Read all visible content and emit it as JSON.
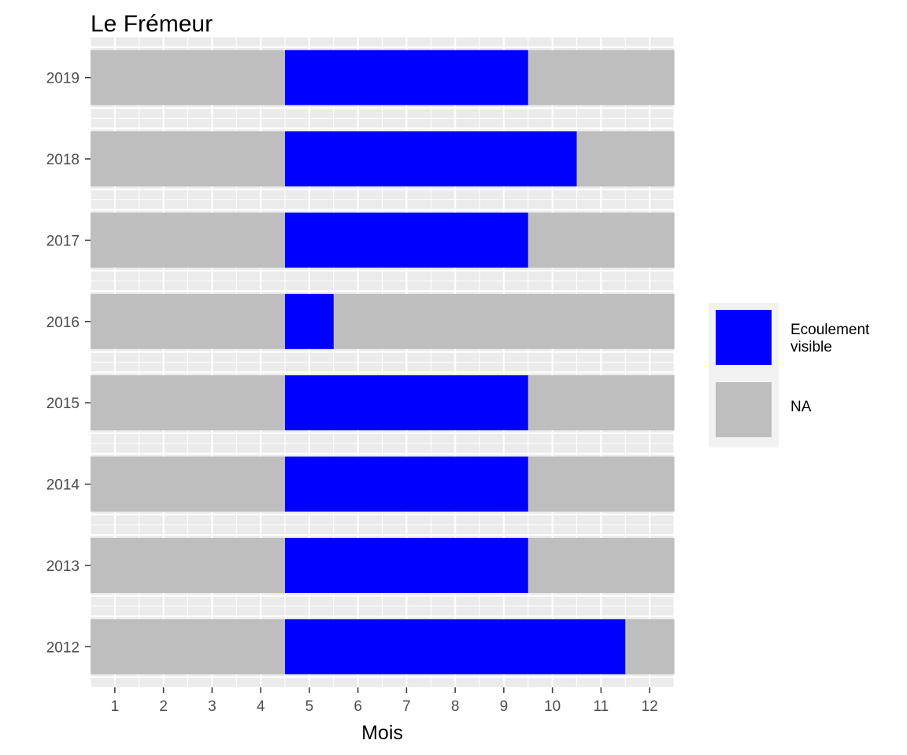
{
  "chart_data": {
    "type": "heatmap",
    "title": "Le Frémeur",
    "xlabel": "Mois",
    "ylabel": "",
    "x_ticks": [
      1,
      2,
      3,
      4,
      5,
      6,
      7,
      8,
      9,
      10,
      11,
      12
    ],
    "y_categories": [
      "2012",
      "2013",
      "2014",
      "2015",
      "2016",
      "2017",
      "2018",
      "2019"
    ],
    "series": [
      {
        "name": "Ecoulement visible",
        "color": "#0000ff"
      },
      {
        "name": "NA",
        "color": "#bebebe"
      }
    ],
    "rows": [
      {
        "year": "2012",
        "flow_months": [
          5,
          6,
          7,
          8,
          9,
          10,
          11
        ]
      },
      {
        "year": "2013",
        "flow_months": [
          5,
          6,
          7,
          8,
          9
        ]
      },
      {
        "year": "2014",
        "flow_months": [
          5,
          6,
          7,
          8,
          9
        ]
      },
      {
        "year": "2015",
        "flow_months": [
          5,
          6,
          7,
          8,
          9
        ]
      },
      {
        "year": "2016",
        "flow_months": [
          5
        ]
      },
      {
        "year": "2017",
        "flow_months": [
          5,
          6,
          7,
          8,
          9
        ]
      },
      {
        "year": "2018",
        "flow_months": [
          5,
          6,
          7,
          8,
          9,
          10
        ]
      },
      {
        "year": "2019",
        "flow_months": [
          5,
          6,
          7,
          8,
          9
        ]
      }
    ],
    "grid": true,
    "legend_position": "right",
    "colors": {
      "panel_background": "#ebebeb",
      "grid": "#ffffff",
      "legend_key_background": "#f2f2f2"
    }
  }
}
